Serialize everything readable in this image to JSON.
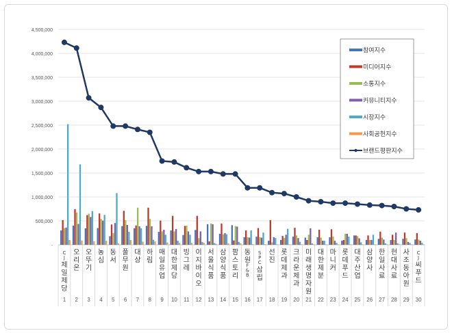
{
  "chart_data": {
    "type": "bar",
    "title": "",
    "xlabel": "",
    "ylabel": "",
    "ylim": [
      0,
      4500000
    ],
    "yticks": [
      "-",
      "500,000",
      "1,000,000",
      "1,500,000",
      "2,000,000",
      "2,500,000",
      "3,000,000",
      "3,500,000",
      "4,000,000",
      "4,500,000"
    ],
    "grid": true,
    "legend_position": "right",
    "ranks": [
      "1",
      "2",
      "3",
      "4",
      "5",
      "6",
      "7",
      "8",
      "9",
      "10",
      "11",
      "12",
      "13",
      "14",
      "15",
      "16",
      "17",
      "18",
      "19",
      "20",
      "21",
      "22",
      "23",
      "24",
      "25",
      "26",
      "27",
      "28",
      "29",
      "30"
    ],
    "categories": [
      "CJ제일제당",
      "오리온",
      "오뚜기",
      "농심",
      "동서",
      "풀무원",
      "대상",
      "하림",
      "매일유업",
      "대한제당",
      "빙그레",
      "이지바이오",
      "서울식품",
      "삼양식품",
      "팜스토리",
      "동원F&B",
      "SPC삼립",
      "선진",
      "롯데제과",
      "크라운제과",
      "미래생명자원",
      "대한제분",
      "마니커",
      "롯데푸드",
      "대주산업",
      "삼양사",
      "한일사료",
      "현대사료",
      "사조동아원",
      "CJ씨푸드"
    ],
    "series": [
      {
        "name": "참여지수",
        "type": "bar",
        "color": "#4472c4",
        "values": [
          300000,
          400000,
          345000,
          350000,
          180000,
          390000,
          345000,
          395000,
          270000,
          300000,
          205000,
          310000,
          430000,
          230000,
          410000,
          160000,
          170000,
          85000,
          100000,
          170000,
          150000,
          157000,
          157000,
          85000,
          195000,
          100000,
          125000,
          100000,
          125000,
          110000
        ]
      },
      {
        "name": "미디어지수",
        "type": "bar",
        "color": "#c0392b",
        "values": [
          516000,
          745000,
          620000,
          655000,
          425000,
          710000,
          405000,
          775000,
          505000,
          605000,
          395000,
          605000,
          70000,
          445000,
          90000,
          300000,
          350000,
          515000,
          185000,
          355000,
          100000,
          315000,
          325000,
          100000,
          195000,
          195000,
          275000,
          210000,
          255000,
          245000
        ]
      },
      {
        "name": "소통지수",
        "type": "bar",
        "color": "#9bbb59",
        "values": [
          350000,
          675000,
          650000,
          540000,
          245000,
          515000,
          775000,
          540000,
          280000,
          280000,
          400000,
          140000,
          445000,
          220000,
          390000,
          157000,
          160000,
          50000,
          140000,
          195000,
          210000,
          150000,
          170000,
          230000,
          180000,
          100000,
          150000,
          100000,
          140000,
          110000
        ]
      },
      {
        "name": "커뮤니티지수",
        "type": "bar",
        "color": "#7f5fa8",
        "values": [
          360000,
          435000,
          580000,
          505000,
          455000,
          415000,
          385000,
          385000,
          315000,
          330000,
          280000,
          280000,
          430000,
          245000,
          380000,
          150000,
          150000,
          157000,
          210000,
          140000,
          345000,
          85000,
          85000,
          230000,
          135000,
          100000,
          110000,
          255000,
          60000,
          85000
        ]
      },
      {
        "name": "시장지수",
        "type": "bar",
        "color": "#4bacc6",
        "values": [
          2520000,
          1680000,
          705000,
          625000,
          1080000,
          270000,
          345000,
          105000,
          210000,
          85000,
          210000,
          60000,
          35000,
          220000,
          60000,
          300000,
          255000,
          140000,
          335000,
          60000,
          30000,
          85000,
          40000,
          170000,
          50000,
          210000,
          30000,
          30000,
          40000,
          40000
        ]
      },
      {
        "name": "사회공헌지수",
        "type": "bar",
        "color": "#f79646",
        "values": [
          100000,
          90000,
          75000,
          85000,
          30000,
          100000,
          65000,
          70000,
          50000,
          40000,
          40000,
          40000,
          20000,
          30000,
          30000,
          15000,
          15000,
          10000,
          10000,
          10000,
          10000,
          10000,
          10000,
          10000,
          10000,
          10000,
          10000,
          10000,
          10000,
          10000
        ]
      },
      {
        "name": "브랜드평판지수",
        "type": "line",
        "color": "#1f3864",
        "values": [
          4230000,
          4110000,
          3070000,
          2870000,
          2480000,
          2480000,
          2410000,
          2350000,
          1750000,
          1730000,
          1610000,
          1530000,
          1530000,
          1480000,
          1480000,
          1190000,
          1190000,
          1090000,
          1070000,
          1000000,
          920000,
          900000,
          870000,
          870000,
          850000,
          830000,
          820000,
          800000,
          750000,
          730000
        ]
      }
    ]
  }
}
